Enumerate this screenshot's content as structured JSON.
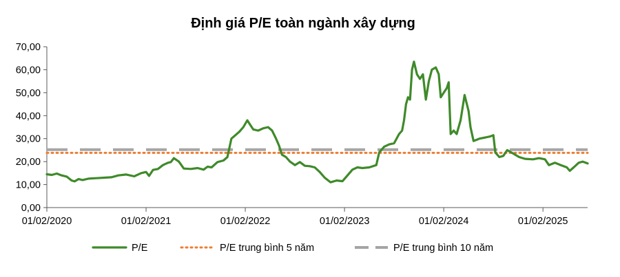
{
  "chart_data": {
    "type": "line",
    "title": "Định giá P/E toàn ngành xây dựng",
    "xlabel": "",
    "ylabel": "",
    "ylim": [
      0,
      70
    ],
    "y_ticks": [
      "0,00",
      "10,00",
      "20,00",
      "30,00",
      "40,00",
      "50,00",
      "60,00",
      "70,00"
    ],
    "y_tick_values": [
      0,
      10,
      20,
      30,
      40,
      50,
      60,
      70
    ],
    "x_ticks": [
      "01/02/2020",
      "01/02/2021",
      "01/02/2022",
      "01/02/2023",
      "01/02/2024",
      "01/02/2025"
    ],
    "x_tick_values": [
      2020.0,
      2021.0,
      2022.0,
      2023.0,
      2024.0,
      2025.0
    ],
    "xlim": [
      2020.0,
      2025.45
    ],
    "grid": false,
    "legend_position": "bottom",
    "series": [
      {
        "name": "P/E",
        "color": "#3f8a2a",
        "style": "solid",
        "points": [
          [
            2020.0,
            14.5
          ],
          [
            2020.05,
            14.2
          ],
          [
            2020.1,
            14.8
          ],
          [
            2020.15,
            14.0
          ],
          [
            2020.2,
            13.5
          ],
          [
            2020.25,
            11.8
          ],
          [
            2020.28,
            11.4
          ],
          [
            2020.32,
            12.4
          ],
          [
            2020.36,
            12.0
          ],
          [
            2020.42,
            12.6
          ],
          [
            2020.5,
            12.8
          ],
          [
            2020.58,
            13.0
          ],
          [
            2020.65,
            13.2
          ],
          [
            2020.72,
            14.0
          ],
          [
            2020.8,
            14.4
          ],
          [
            2020.88,
            13.6
          ],
          [
            2020.95,
            15.0
          ],
          [
            2021.0,
            15.5
          ],
          [
            2021.03,
            13.8
          ],
          [
            2021.07,
            16.4
          ],
          [
            2021.12,
            16.8
          ],
          [
            2021.17,
            18.5
          ],
          [
            2021.22,
            19.5
          ],
          [
            2021.25,
            19.8
          ],
          [
            2021.28,
            21.5
          ],
          [
            2021.33,
            20.0
          ],
          [
            2021.38,
            17.0
          ],
          [
            2021.45,
            16.8
          ],
          [
            2021.52,
            17.2
          ],
          [
            2021.58,
            16.5
          ],
          [
            2021.62,
            17.8
          ],
          [
            2021.66,
            17.5
          ],
          [
            2021.72,
            19.8
          ],
          [
            2021.78,
            20.5
          ],
          [
            2021.82,
            22.0
          ],
          [
            2021.86,
            30.0
          ],
          [
            2021.9,
            31.5
          ],
          [
            2021.94,
            33.0
          ],
          [
            2021.98,
            35.0
          ],
          [
            2022.02,
            38.0
          ],
          [
            2022.05,
            36.0
          ],
          [
            2022.08,
            34.0
          ],
          [
            2022.13,
            33.5
          ],
          [
            2022.18,
            34.5
          ],
          [
            2022.23,
            35.0
          ],
          [
            2022.27,
            33.5
          ],
          [
            2022.31,
            30.0
          ],
          [
            2022.34,
            27.0
          ],
          [
            2022.37,
            23.0
          ],
          [
            2022.41,
            22.0
          ],
          [
            2022.45,
            20.0
          ],
          [
            2022.5,
            18.5
          ],
          [
            2022.55,
            19.8
          ],
          [
            2022.6,
            18.2
          ],
          [
            2022.65,
            18.0
          ],
          [
            2022.7,
            17.5
          ],
          [
            2022.75,
            15.5
          ],
          [
            2022.8,
            13.0
          ],
          [
            2022.86,
            11.0
          ],
          [
            2022.92,
            11.8
          ],
          [
            2022.98,
            11.5
          ],
          [
            2023.03,
            14.0
          ],
          [
            2023.08,
            16.5
          ],
          [
            2023.13,
            17.5
          ],
          [
            2023.18,
            17.2
          ],
          [
            2023.25,
            17.5
          ],
          [
            2023.32,
            18.5
          ],
          [
            2023.35,
            24.0
          ],
          [
            2023.4,
            26.5
          ],
          [
            2023.45,
            27.5
          ],
          [
            2023.5,
            28.0
          ],
          [
            2023.55,
            32.0
          ],
          [
            2023.58,
            33.5
          ],
          [
            2023.6,
            38.0
          ],
          [
            2023.62,
            45.0
          ],
          [
            2023.64,
            48.0
          ],
          [
            2023.66,
            47.0
          ],
          [
            2023.68,
            60.0
          ],
          [
            2023.7,
            63.5
          ],
          [
            2023.73,
            58.0
          ],
          [
            2023.76,
            56.0
          ],
          [
            2023.79,
            58.0
          ],
          [
            2023.82,
            47.0
          ],
          [
            2023.85,
            55.0
          ],
          [
            2023.88,
            60.0
          ],
          [
            2023.92,
            61.0
          ],
          [
            2023.95,
            58.0
          ],
          [
            2023.97,
            48.0
          ],
          [
            2024.0,
            50.0
          ],
          [
            2024.03,
            52.0
          ],
          [
            2024.05,
            54.5
          ],
          [
            2024.07,
            32.0
          ],
          [
            2024.1,
            33.5
          ],
          [
            2024.13,
            32.0
          ],
          [
            2024.17,
            38.0
          ],
          [
            2024.21,
            49.0
          ],
          [
            2024.25,
            42.0
          ],
          [
            2024.27,
            35.0
          ],
          [
            2024.3,
            29.0
          ],
          [
            2024.36,
            30.0
          ],
          [
            2024.42,
            30.5
          ],
          [
            2024.47,
            31.0
          ],
          [
            2024.5,
            31.5
          ],
          [
            2024.52,
            24.0
          ],
          [
            2024.56,
            22.0
          ],
          [
            2024.6,
            22.5
          ],
          [
            2024.64,
            25.0
          ],
          [
            2024.7,
            23.5
          ],
          [
            2024.76,
            22.0
          ],
          [
            2024.82,
            21.2
          ],
          [
            2024.9,
            21.0
          ],
          [
            2024.96,
            21.5
          ],
          [
            2025.02,
            21.0
          ],
          [
            2025.06,
            18.5
          ],
          [
            2025.12,
            19.5
          ],
          [
            2025.18,
            18.5
          ],
          [
            2025.24,
            17.5
          ],
          [
            2025.27,
            16.0
          ],
          [
            2025.31,
            17.5
          ],
          [
            2025.36,
            19.5
          ],
          [
            2025.4,
            20.0
          ],
          [
            2025.45,
            19.2
          ]
        ]
      },
      {
        "name": "P/E trung bình 5 năm",
        "color": "#ed7d31",
        "style": "dotted",
        "points": [
          [
            2020.0,
            23.8
          ],
          [
            2025.45,
            23.8
          ]
        ]
      },
      {
        "name": "P/E trung bình 10 năm",
        "color": "#a5a5a5",
        "style": "dashed",
        "points": [
          [
            2020.0,
            25.2
          ],
          [
            2025.45,
            25.2
          ]
        ]
      }
    ]
  }
}
